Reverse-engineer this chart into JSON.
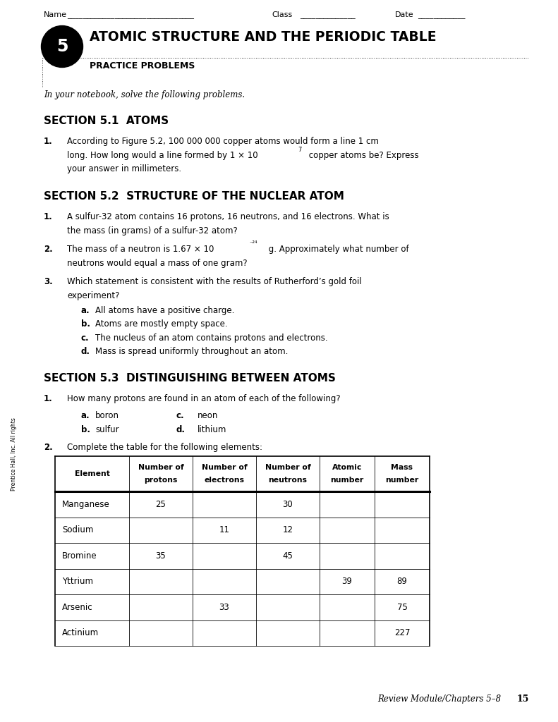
{
  "bg_color": "#ffffff",
  "page_width": 7.91,
  "page_height": 10.24,
  "table_headers": [
    "Element",
    "Number of\nprotons",
    "Number of\nelectrons",
    "Number of\nneutrons",
    "Atomic\nnumber",
    "Mass\nnumber"
  ],
  "table_data": [
    [
      "Manganese",
      "25",
      "",
      "30",
      "",
      ""
    ],
    [
      "Sodium",
      "",
      "11",
      "12",
      "",
      ""
    ],
    [
      "Bromine",
      "35",
      "",
      "45",
      "",
      ""
    ],
    [
      "Yttrium",
      "",
      "",
      "",
      "39",
      "89"
    ],
    [
      "Arsenic",
      "",
      "33",
      "",
      "",
      "75"
    ],
    [
      "Actinium",
      "",
      "",
      "",
      "",
      "227"
    ]
  ],
  "footer_italic": "Review Module/Chapters 5–8",
  "footer_bold": "15",
  "sidebar": "Prentice Hall, Inc. All rights"
}
